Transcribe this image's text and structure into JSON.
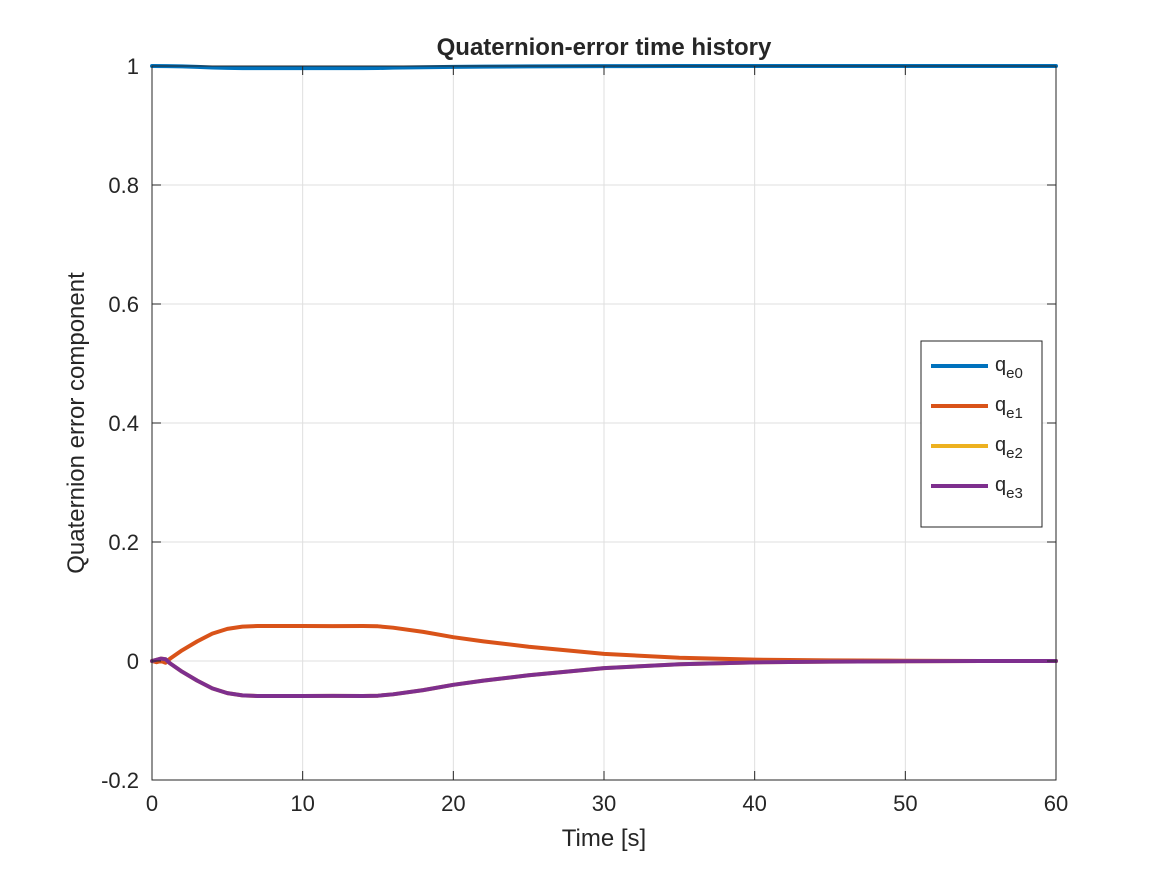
{
  "chart_data": {
    "type": "line",
    "title": "Quaternion-error time history",
    "xlabel": "Time [s]",
    "ylabel": "Quaternion error component",
    "xlim": [
      0,
      60
    ],
    "ylim": [
      -0.2,
      1
    ],
    "xticks": [
      0,
      10,
      20,
      30,
      40,
      50,
      60
    ],
    "xtick_labels": [
      "0",
      "10",
      "20",
      "30",
      "40",
      "50",
      "60"
    ],
    "yticks": [
      -0.2,
      0,
      0.2,
      0.4,
      0.6,
      0.8,
      1
    ],
    "ytick_labels": [
      "-0.2",
      "0",
      "0.2",
      "0.4",
      "0.6",
      "0.8",
      "1"
    ],
    "grid": true,
    "legend_position": "right",
    "series": [
      {
        "name": "q_e0",
        "label_main": "q",
        "label_sub": "e0",
        "color": "#0072BD",
        "x": [
          0,
          1,
          2,
          3,
          4,
          5,
          6,
          8,
          10,
          12,
          14,
          15,
          16,
          18,
          20,
          22,
          25,
          30,
          35,
          40,
          45,
          50,
          55,
          60
        ],
        "y": [
          1,
          0.9998,
          0.9993,
          0.9985,
          0.9975,
          0.9968,
          0.9965,
          0.9964,
          0.9964,
          0.9964,
          0.9964,
          0.9966,
          0.9972,
          0.998,
          0.9985,
          0.999,
          0.9994,
          0.9997,
          0.9999,
          0.99995,
          1,
          1,
          1,
          1
        ]
      },
      {
        "name": "q_e1",
        "label_main": "q",
        "label_sub": "e1",
        "color": "#D95319",
        "x": [
          0,
          0.3,
          0.6,
          0.9,
          1.2,
          2,
          3,
          4,
          5,
          6,
          7,
          8,
          10,
          12,
          14,
          15,
          16,
          18,
          20,
          22,
          25,
          30,
          35,
          40,
          45,
          50,
          55,
          60
        ],
        "y": [
          0,
          -0.002,
          0,
          -0.003,
          0.004,
          0.018,
          0.033,
          0.046,
          0.054,
          0.0578,
          0.0588,
          0.0589,
          0.0588,
          0.0587,
          0.0588,
          0.0583,
          0.056,
          0.049,
          0.04,
          0.033,
          0.024,
          0.012,
          0.0055,
          0.0023,
          0.001,
          0.0004,
          0.0001,
          0
        ]
      },
      {
        "name": "q_e2",
        "label_main": "q",
        "label_sub": "e2",
        "color": "#EDB120",
        "x": [
          0,
          0.3,
          0.6,
          0.9,
          1.2,
          2,
          3,
          4,
          5,
          6,
          7,
          8,
          10,
          12,
          14,
          15,
          16,
          18,
          20,
          22,
          25,
          30,
          35,
          40,
          45,
          50,
          55,
          60
        ],
        "y": [
          0,
          0.002,
          0.004,
          0.003,
          -0.004,
          -0.018,
          -0.033,
          -0.046,
          -0.054,
          -0.0578,
          -0.0588,
          -0.0589,
          -0.0588,
          -0.0587,
          -0.0588,
          -0.0583,
          -0.056,
          -0.049,
          -0.04,
          -0.033,
          -0.024,
          -0.012,
          -0.0055,
          -0.0023,
          -0.001,
          -0.0004,
          -0.0001,
          0
        ]
      },
      {
        "name": "q_e3",
        "label_main": "q",
        "label_sub": "e3",
        "color": "#7E2F8E",
        "x": [
          0,
          0.3,
          0.6,
          0.9,
          1.2,
          2,
          3,
          4,
          5,
          6,
          7,
          8,
          10,
          12,
          14,
          15,
          16,
          18,
          20,
          22,
          25,
          30,
          35,
          40,
          45,
          50,
          55,
          60
        ],
        "y": [
          0,
          0.002,
          0.004,
          0.003,
          -0.004,
          -0.018,
          -0.033,
          -0.046,
          -0.054,
          -0.0578,
          -0.0588,
          -0.0589,
          -0.0588,
          -0.0587,
          -0.0588,
          -0.0583,
          -0.056,
          -0.049,
          -0.04,
          -0.033,
          -0.024,
          -0.012,
          -0.0055,
          -0.0023,
          -0.001,
          -0.0004,
          -0.0001,
          0
        ]
      }
    ]
  }
}
